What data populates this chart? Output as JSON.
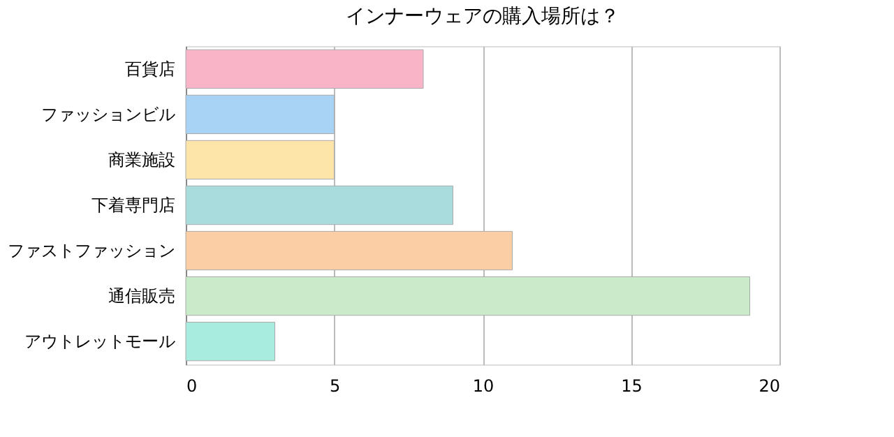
{
  "chart_data": {
    "type": "bar",
    "orientation": "horizontal",
    "title": "インナーウェアの購入場所は？",
    "categories": [
      "百貨店",
      "ファッションビル",
      "商業施設",
      "下着専門店",
      "ファストファッション",
      "通信販売",
      "アウトレットモール"
    ],
    "values": [
      8,
      5,
      5,
      9,
      11,
      19,
      3
    ],
    "colors": [
      "#f9b4c8",
      "#a9d3f4",
      "#fde4a8",
      "#a9dcdc",
      "#fbcea6",
      "#c9ebc9",
      "#a8ece0"
    ],
    "xlim": [
      0,
      20
    ],
    "xticks": [
      0,
      5,
      10,
      15,
      20
    ],
    "grid": "x"
  }
}
